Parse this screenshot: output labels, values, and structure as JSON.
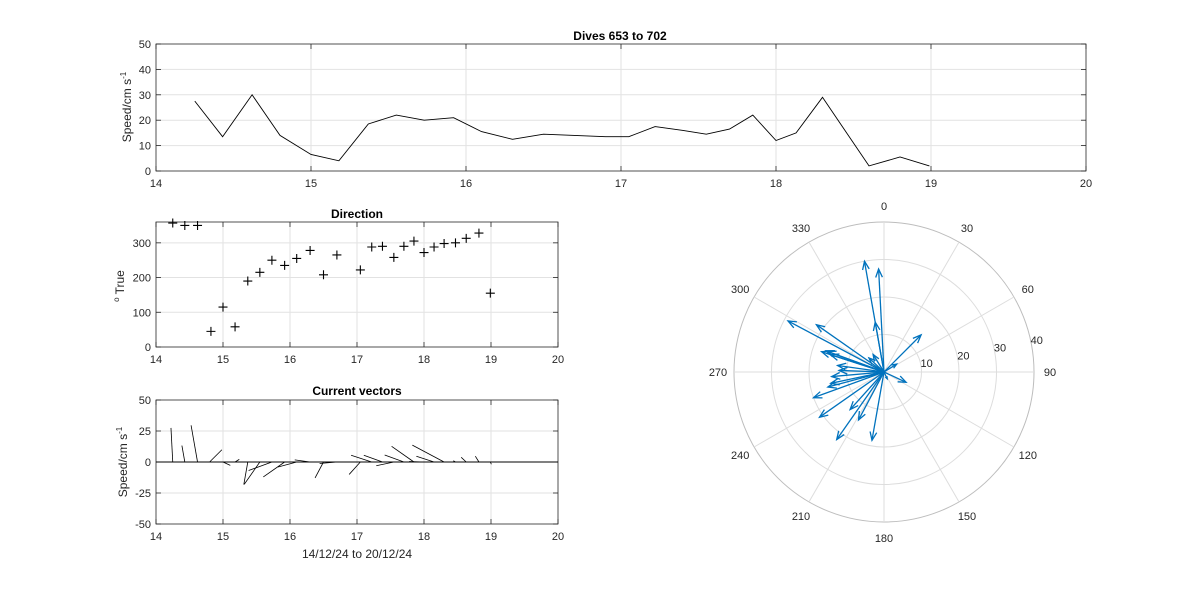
{
  "chart_data": [
    {
      "type": "line",
      "title": "Dives 653 to 702",
      "xlabel": "",
      "ylabel": "Speed/cm s",
      "ylabel_sup": "-1",
      "xlim": [
        14,
        20
      ],
      "ylim": [
        0,
        50
      ],
      "xticks": [
        14,
        15,
        16,
        17,
        18,
        19,
        20
      ],
      "yticks": [
        0,
        10,
        20,
        30,
        40,
        50
      ],
      "grid": true,
      "series": [
        {
          "color": "#000000",
          "x": [
            14.25,
            14.43,
            14.62,
            14.8,
            15.0,
            15.18,
            15.37,
            15.55,
            15.73,
            15.92,
            16.1,
            16.3,
            16.5,
            16.7,
            16.9,
            17.05,
            17.22,
            17.4,
            17.55,
            17.7,
            17.85,
            18.0,
            18.13,
            18.3,
            18.6,
            18.8,
            18.99
          ],
          "y": [
            27.5,
            13.5,
            30.0,
            14.0,
            6.5,
            4.0,
            18.5,
            22.0,
            20.0,
            21.0,
            15.5,
            12.5,
            14.5,
            14.0,
            13.5,
            13.5,
            17.5,
            16.0,
            14.5,
            16.5,
            22.0,
            12.0,
            15.0,
            29.0,
            2.0,
            5.5,
            2.0
          ]
        }
      ]
    },
    {
      "type": "scatter",
      "title": "Direction",
      "xlabel": "",
      "ylabel": "True",
      "ylabel_pre": "o",
      "xlim": [
        14,
        20
      ],
      "ylim": [
        0,
        360
      ],
      "xticks": [
        14,
        15,
        16,
        17,
        18,
        19,
        20
      ],
      "yticks": [
        0,
        100,
        200,
        300
      ],
      "grid": true,
      "marker": "+",
      "series": [
        {
          "color": "#000000",
          "x": [
            14.25,
            14.43,
            14.62,
            14.82,
            15.0,
            15.18,
            15.37,
            15.55,
            15.73,
            15.92,
            16.1,
            16.3,
            16.5,
            16.7,
            17.05,
            17.22,
            17.38,
            17.55,
            17.7,
            17.85,
            18.0,
            18.15,
            18.3,
            18.47,
            18.63,
            18.82,
            18.99
          ],
          "y": [
            357,
            350,
            350,
            45,
            115,
            58,
            190,
            215,
            250,
            235,
            255,
            278,
            208,
            265,
            222,
            288,
            290,
            258,
            290,
            305,
            272,
            288,
            298,
            300,
            313,
            328,
            155
          ]
        }
      ]
    },
    {
      "type": "quiver",
      "title": "Current vectors",
      "xlabel": "14/12/24 to 20/12/24",
      "ylabel": "Speed/cm s",
      "ylabel_sup": "-1",
      "xlim": [
        14,
        20
      ],
      "ylim": [
        -50,
        50
      ],
      "xticks": [
        14,
        15,
        16,
        17,
        18,
        19,
        20
      ],
      "yticks": [
        -50,
        -25,
        0,
        25,
        50
      ],
      "grid": true,
      "vectors": [
        {
          "x": 14.25,
          "dir": 357,
          "speed": 27.5
        },
        {
          "x": 14.43,
          "dir": 350,
          "speed": 13.5
        },
        {
          "x": 14.62,
          "dir": 350,
          "speed": 30.0
        },
        {
          "x": 14.8,
          "dir": 45,
          "speed": 14.0
        },
        {
          "x": 15.0,
          "dir": 115,
          "speed": 6.5
        },
        {
          "x": 15.18,
          "dir": 58,
          "speed": 4.0
        },
        {
          "x": 15.37,
          "dir": 190,
          "speed": 18.5
        },
        {
          "x": 15.55,
          "dir": 215,
          "speed": 22.0
        },
        {
          "x": 15.73,
          "dir": 250,
          "speed": 20.0
        },
        {
          "x": 15.92,
          "dir": 235,
          "speed": 21.0
        },
        {
          "x": 16.1,
          "dir": 255,
          "speed": 15.5
        },
        {
          "x": 16.3,
          "dir": 278,
          "speed": 12.5
        },
        {
          "x": 16.5,
          "dir": 208,
          "speed": 14.5
        },
        {
          "x": 16.7,
          "dir": 265,
          "speed": 14.0
        },
        {
          "x": 17.05,
          "dir": 222,
          "speed": 13.5
        },
        {
          "x": 17.22,
          "dir": 288,
          "speed": 17.5
        },
        {
          "x": 17.38,
          "dir": 290,
          "speed": 16.0
        },
        {
          "x": 17.55,
          "dir": 258,
          "speed": 14.5
        },
        {
          "x": 17.7,
          "dir": 290,
          "speed": 16.5
        },
        {
          "x": 17.85,
          "dir": 305,
          "speed": 22.0
        },
        {
          "x": 18.0,
          "dir": 272,
          "speed": 12.0
        },
        {
          "x": 18.15,
          "dir": 288,
          "speed": 15.0
        },
        {
          "x": 18.3,
          "dir": 298,
          "speed": 29.0
        },
        {
          "x": 18.47,
          "dir": 300,
          "speed": 2.0
        },
        {
          "x": 18.63,
          "dir": 313,
          "speed": 5.5
        },
        {
          "x": 18.82,
          "dir": 328,
          "speed": 5.5
        },
        {
          "x": 18.99,
          "dir": 155,
          "speed": 2.0
        }
      ]
    },
    {
      "type": "compass",
      "title": "",
      "rlim": [
        0,
        40
      ],
      "rticks": [
        10,
        20,
        30,
        40
      ],
      "theta_labels": [
        "0",
        "30",
        "60",
        "90",
        "120",
        "150",
        "180",
        "210",
        "240",
        "270",
        "300",
        "330"
      ],
      "color": "#0072BD",
      "vectors": [
        {
          "dir": 357,
          "speed": 27.5
        },
        {
          "dir": 350,
          "speed": 13.5
        },
        {
          "dir": 350,
          "speed": 30.0
        },
        {
          "dir": 45,
          "speed": 14.0
        },
        {
          "dir": 115,
          "speed": 6.5
        },
        {
          "dir": 58,
          "speed": 4.0
        },
        {
          "dir": 190,
          "speed": 18.5
        },
        {
          "dir": 215,
          "speed": 22.0
        },
        {
          "dir": 250,
          "speed": 20.0
        },
        {
          "dir": 235,
          "speed": 21.0
        },
        {
          "dir": 255,
          "speed": 15.5
        },
        {
          "dir": 278,
          "speed": 12.5
        },
        {
          "dir": 208,
          "speed": 14.5
        },
        {
          "dir": 265,
          "speed": 14.0
        },
        {
          "dir": 222,
          "speed": 13.5
        },
        {
          "dir": 288,
          "speed": 17.5
        },
        {
          "dir": 290,
          "speed": 16.0
        },
        {
          "dir": 258,
          "speed": 14.5
        },
        {
          "dir": 290,
          "speed": 16.5
        },
        {
          "dir": 305,
          "speed": 22.0
        },
        {
          "dir": 272,
          "speed": 12.0
        },
        {
          "dir": 288,
          "speed": 15.0
        },
        {
          "dir": 298,
          "speed": 29.0
        },
        {
          "dir": 300,
          "speed": 2.0
        },
        {
          "dir": 313,
          "speed": 5.5
        },
        {
          "dir": 328,
          "speed": 5.5
        },
        {
          "dir": 155,
          "speed": 2.0
        }
      ]
    }
  ]
}
